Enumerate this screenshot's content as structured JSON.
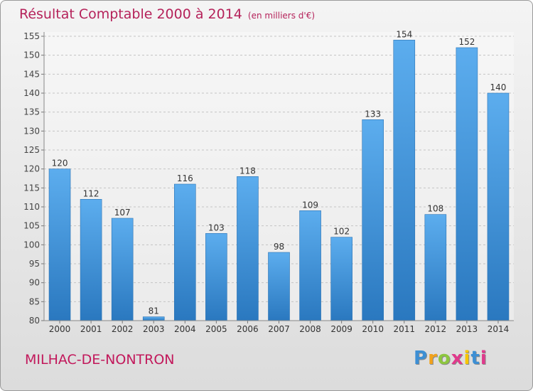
{
  "header": {
    "title": "Résultat Comptable 2000 à 2014",
    "subtitle": "(en milliers d'€)"
  },
  "commune": "MILHAC-DE-NONTRON",
  "logo": {
    "letters": [
      "P",
      "r",
      "o",
      "x",
      "i",
      "t",
      "i"
    ],
    "colors": [
      "#3d8fd4",
      "#f2a21b",
      "#8dc63f",
      "#e03a8c",
      "#f7c600",
      "#3d8fd4",
      "#e03a8c"
    ]
  },
  "chart_data": {
    "type": "bar",
    "title": "Résultat Comptable 2000 à 2014",
    "subtitle": "(en milliers d'€)",
    "xlabel": "",
    "ylabel": "",
    "categories": [
      "2000",
      "2001",
      "2002",
      "2003",
      "2004",
      "2005",
      "2006",
      "2007",
      "2008",
      "2009",
      "2010",
      "2011",
      "2012",
      "2013",
      "2014"
    ],
    "values": [
      120,
      112,
      107,
      81,
      116,
      103,
      118,
      98,
      109,
      102,
      133,
      154,
      108,
      152,
      140
    ],
    "ylim": [
      80,
      155
    ],
    "yticks": [
      80,
      85,
      90,
      95,
      100,
      105,
      110,
      115,
      120,
      125,
      130,
      135,
      140,
      145,
      150,
      155
    ],
    "grid": true,
    "bar_color": "#3a8fd6"
  }
}
